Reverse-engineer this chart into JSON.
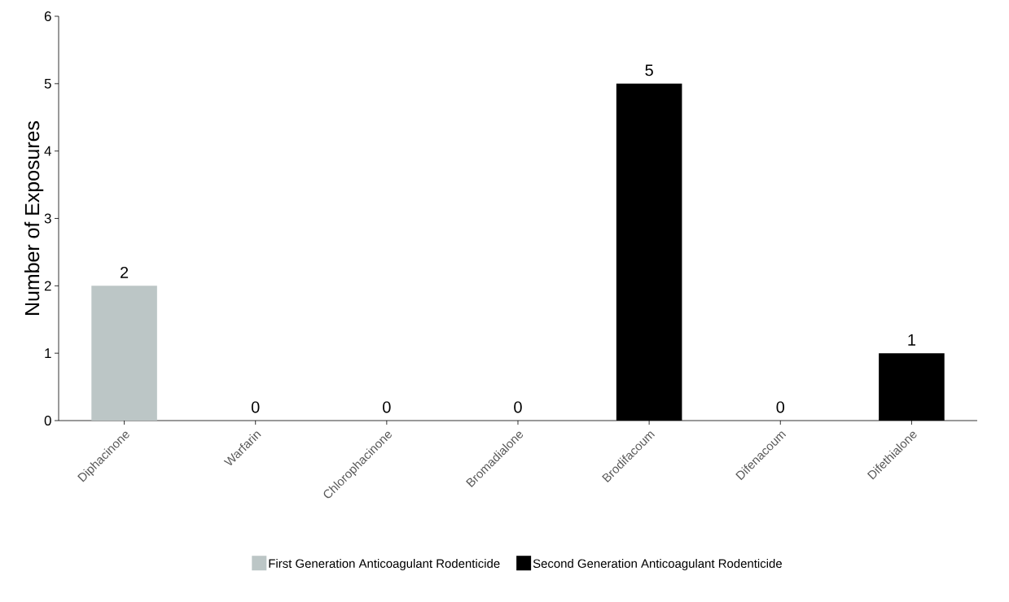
{
  "chart_data": {
    "type": "bar",
    "ylabel": "Number of Exposures",
    "categories": [
      "Diphacinone",
      "Warfarin",
      "Chlorophacinone",
      "Bromadialone",
      "Brodifacoum",
      "Difenacoum",
      "Difethialone"
    ],
    "series": [
      {
        "name": "First Generation Anticoagulant Rodenticide",
        "color": "#bcc6c6",
        "values": [
          2,
          0,
          0,
          null,
          null,
          null,
          null
        ]
      },
      {
        "name": "Second Generation Anticoagulant Rodenticide",
        "color": "#000000",
        "values": [
          null,
          null,
          null,
          0,
          5,
          0,
          1
        ]
      }
    ],
    "ylim": [
      0,
      6
    ],
    "yticks": [
      0,
      1,
      2,
      3,
      4,
      5,
      6
    ],
    "data_labels": true,
    "legend": "bottom",
    "grid": false
  }
}
